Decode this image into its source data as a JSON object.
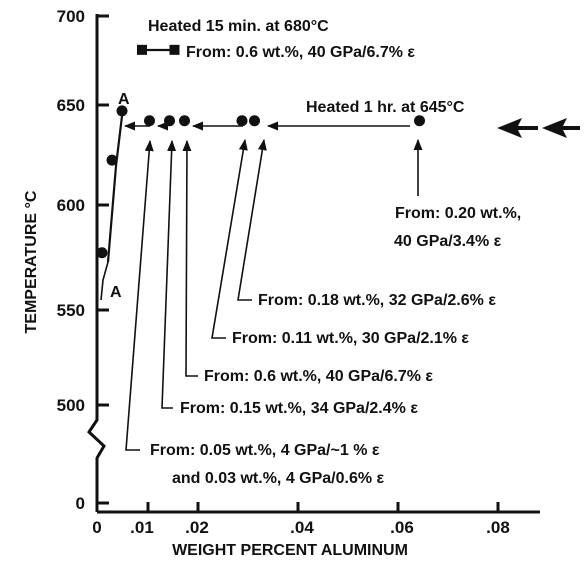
{
  "chart_data": {
    "type": "scatter",
    "title": "",
    "xlabel": "WEIGHT PERCENT ALUMINUM",
    "ylabel": "TEMPERATURE °C",
    "x_tick_labels": [
      "0",
      ".01",
      ".02",
      ".04",
      ".06",
      ".08"
    ],
    "y_tick_labels": [
      "0",
      "500",
      "550",
      "600",
      "650",
      "700"
    ],
    "xlim": [
      0,
      0.09
    ],
    "ylim": [
      480,
      700
    ],
    "y_axis_break": true,
    "grid": false,
    "points": [
      {
        "x": 0.001,
        "y": 575
      },
      {
        "x": 0.003,
        "y": 622
      },
      {
        "x": 0.005,
        "y": 647
      },
      {
        "x": 0.0105,
        "y": 642
      },
      {
        "x": 0.0145,
        "y": 642
      },
      {
        "x": 0.0175,
        "y": 642
      },
      {
        "x": 0.029,
        "y": 642
      },
      {
        "x": 0.0315,
        "y": 642
      },
      {
        "x": 0.0645,
        "y": 642
      }
    ],
    "square_pair": [
      {
        "x": 0.009,
        "y": 678
      },
      {
        "x": 0.0155,
        "y": 678
      }
    ],
    "annotations": {
      "series_a_top": "A",
      "series_a_bottom": "A",
      "heated_15": "Heated 15 min. at 680°C",
      "heated_15_from": "From: 0.6 wt.%, 40 GPa/6.7% ε",
      "heated_1hr": "Heated 1 hr. at 645°C",
      "from_020_l1": "From: 0.20 wt.%,",
      "from_020_l2": "40 GPa/3.4% ε",
      "from_018": "From: 0.18 wt.%, 32 GPa/2.6% ε",
      "from_011": "From: 0.11 wt.%, 30 GPa/2.1% ε",
      "from_06": "From: 0.6 wt.%, 40 GPa/6.7% ε",
      "from_015": "From: 0.15 wt.%, 34 GPa/2.4% ε",
      "from_005_l1": "From: 0.05 wt.%, 4 GPa/~1 % ε",
      "from_005_l2": "and 0.03 wt.%, 4 GPa/0.6% ε"
    }
  }
}
